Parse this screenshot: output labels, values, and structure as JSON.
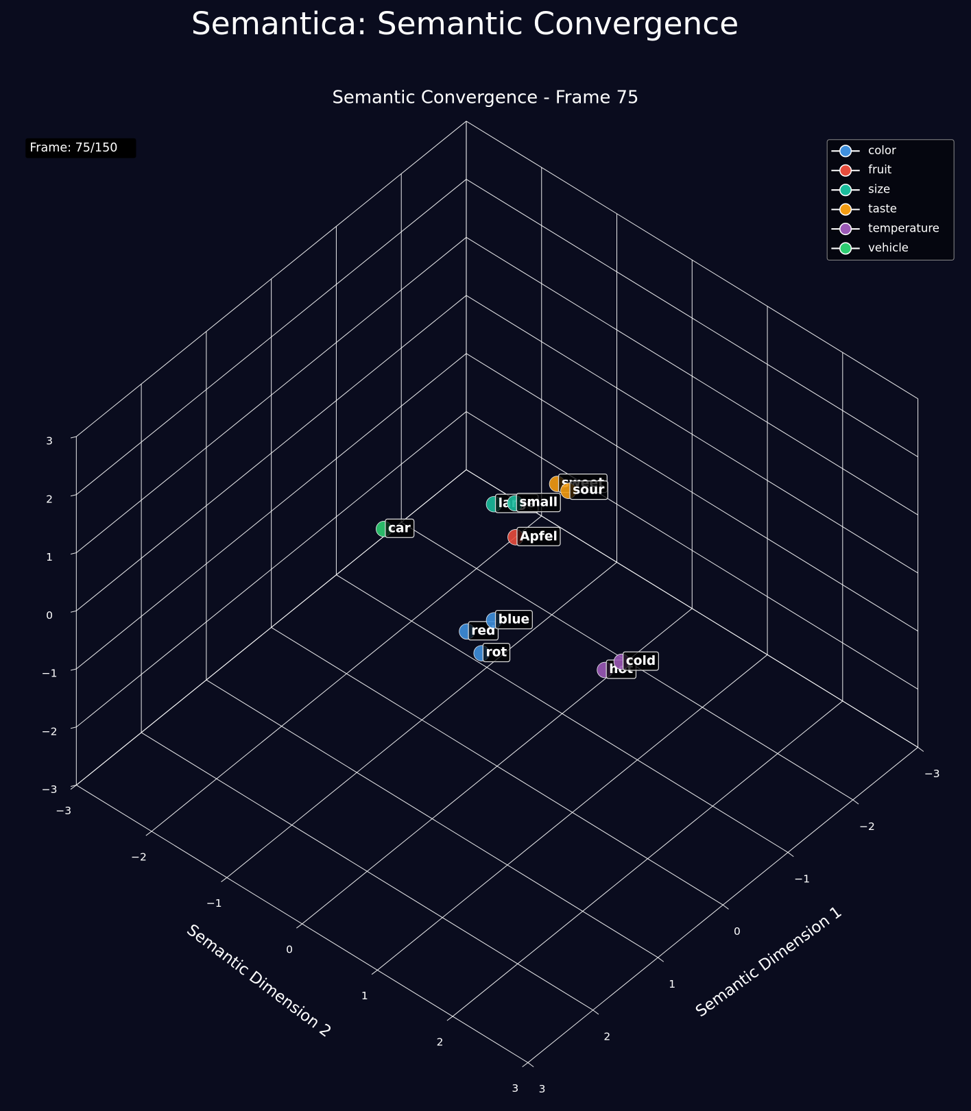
{
  "chart_data": {
    "type": "scatter3d",
    "suptitle": "Semantica: Semantic Convergence",
    "title": "Semantic Convergence - Frame 75",
    "annotation": "Frame: 75/150",
    "xlabel": "Semantic Dimension 1",
    "ylabel": "Semantic Dimension 2",
    "xlim": [
      -3,
      3
    ],
    "ylim": [
      -3,
      3
    ],
    "zlim": [
      -3,
      3
    ],
    "xticks": [
      {
        "value": -3,
        "label": "−3"
      },
      {
        "value": -2,
        "label": "−2"
      },
      {
        "value": -1,
        "label": "−1"
      },
      0,
      1,
      2,
      3
    ],
    "yticks": [
      {
        "value": -3,
        "label": "−3"
      },
      {
        "value": -2,
        "label": "−2"
      },
      {
        "value": -1,
        "label": "−1"
      },
      0,
      1,
      2,
      3
    ],
    "zticks": [
      {
        "value": -3,
        "label": "−3"
      },
      {
        "value": -2,
        "label": "−2"
      },
      {
        "value": -1,
        "label": "−1"
      },
      0,
      1,
      2,
      3
    ],
    "grid": true,
    "legend": "upper right",
    "series": [
      {
        "name": "color",
        "color": "#3f8fdc",
        "labels": [
          "red",
          "blue",
          "rot"
        ],
        "x": [
          0,
          -0.3,
          -0.05
        ],
        "y": [
          -0.4,
          -0.3,
          -0.25
        ],
        "z": [
          -1,
          -1,
          -1.3
        ]
      },
      {
        "name": "fruit",
        "color": "#e74c3c",
        "labels": [
          "Apfel"
        ],
        "x": [
          -0.4
        ],
        "y": [
          -0.1
        ],
        "z": [
          0.5
        ]
      },
      {
        "name": "size",
        "color": "#1abc9c",
        "labels": [
          "large",
          "small"
        ],
        "x": [
          -0.3,
          -0.45
        ],
        "y": [
          -0.3,
          -0.15
        ],
        "z": [
          1,
          1
        ]
      },
      {
        "name": "taste",
        "color": "#f39c12",
        "labels": [
          "sweet",
          "sour"
        ],
        "x": [
          -0.75,
          -0.75
        ],
        "y": [
          0.15,
          0.3
        ],
        "z": [
          1.3,
          1.3
        ]
      },
      {
        "name": "temperature",
        "color": "#9b59b6",
        "labels": [
          "hot",
          "cold"
        ],
        "x": [
          -0.5,
          -0.7
        ],
        "y": [
          1,
          1.05
        ],
        "z": [
          -1,
          -1
        ]
      },
      {
        "name": "vehicle",
        "color": "#2ecc71",
        "labels": [
          "car"
        ],
        "x": [
          0.7
        ],
        "y": [
          -0.9
        ],
        "z": [
          1
        ]
      }
    ]
  }
}
